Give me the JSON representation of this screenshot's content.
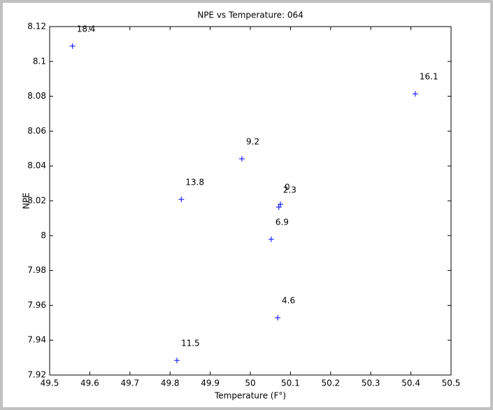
{
  "chart_data": {
    "type": "scatter",
    "title": "NPE vs Temperature: 064",
    "x_label": "Temperature (F°)",
    "y_label": "NPE",
    "x": [
      49.557,
      50.411,
      49.979,
      49.828,
      50.075,
      50.071,
      50.052,
      50.068,
      49.817
    ],
    "values": [
      8.1088,
      8.0814,
      8.0441,
      8.0208,
      8.018,
      8.0164,
      7.9979,
      7.9529,
      7.9284
    ],
    "labels": [
      "18.4",
      "16.1",
      "9.2",
      "13.8",
      "0",
      "2.3",
      "6.9",
      "4.6",
      "11.5"
    ],
    "color": "#0000ff",
    "marker": "+",
    "xlim": [
      49.5,
      50.5
    ],
    "xticks": [
      49.5,
      49.6,
      49.7,
      49.8,
      49.9,
      50,
      50.1,
      50.2,
      50.3,
      50.4,
      50.5
    ],
    "ylim": [
      7.92,
      8.12
    ],
    "yticks": [
      7.92,
      7.94,
      7.96,
      7.98,
      8,
      8.02,
      8.04,
      8.06,
      8.08,
      8.1,
      8.12
    ],
    "grid": false
  }
}
